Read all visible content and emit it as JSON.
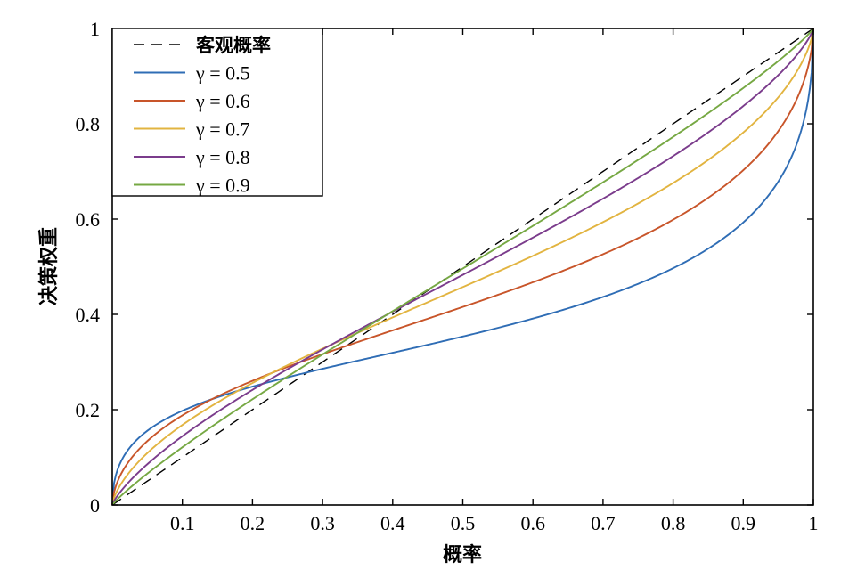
{
  "chart_data": {
    "type": "line",
    "xlabel": "概率",
    "ylabel": "决策权重",
    "xlim": [
      0,
      1
    ],
    "ylim": [
      0,
      1
    ],
    "x_ticks": [
      "0.1",
      "0.2",
      "0.3",
      "0.4",
      "0.5",
      "0.6",
      "0.7",
      "0.8",
      "0.9",
      "1"
    ],
    "x_tick_values": [
      0.1,
      0.2,
      0.3,
      0.4,
      0.5,
      0.6,
      0.7,
      0.8,
      0.9,
      1
    ],
    "y_ticks": [
      "0",
      "0.2",
      "0.4",
      "0.6",
      "0.8",
      "1"
    ],
    "y_tick_values": [
      0,
      0.2,
      0.4,
      0.6,
      0.8,
      1
    ],
    "grid": false,
    "legend_position": "top-left",
    "series": [
      {
        "name": "客观概率",
        "style": "dashed",
        "color": "#000000",
        "gamma": 1.0
      },
      {
        "name": "γ = 0.5",
        "style": "solid",
        "color": "#2f6db5",
        "gamma": 0.5
      },
      {
        "name": "γ = 0.6",
        "style": "solid",
        "color": "#c8552a",
        "gamma": 0.6
      },
      {
        "name": "γ = 0.7",
        "style": "solid",
        "color": "#e2b440",
        "gamma": 0.7
      },
      {
        "name": "γ = 0.8",
        "style": "solid",
        "color": "#7b3c8c",
        "gamma": 0.8
      },
      {
        "name": "γ = 0.9",
        "style": "solid",
        "color": "#76a843",
        "gamma": 0.9
      }
    ]
  }
}
